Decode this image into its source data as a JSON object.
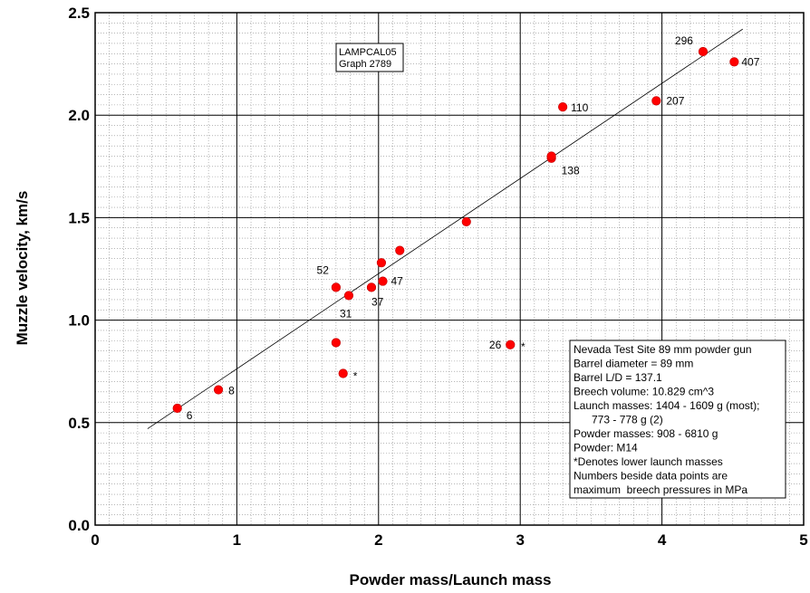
{
  "chart_data": {
    "type": "scatter",
    "title": "",
    "xlabel": "Powder mass/Launch mass",
    "ylabel": "Muzzle velocity, km/s",
    "xlim": [
      0,
      5
    ],
    "ylim": [
      0,
      2.5
    ],
    "x_ticks": [
      0,
      1,
      2,
      3,
      4,
      5
    ],
    "y_ticks": [
      0.0,
      0.5,
      1.0,
      1.5,
      2.0,
      2.5
    ],
    "x_tick_labels": [
      "0",
      "1",
      "2",
      "3",
      "4",
      "5"
    ],
    "y_tick_labels": [
      "0.0",
      "0.5",
      "1.0",
      "1.5",
      "2.0",
      "2.5"
    ],
    "grid": true,
    "marker_color": "#ff0000",
    "points": [
      {
        "x": 0.58,
        "y": 0.57,
        "label": "6"
      },
      {
        "x": 0.87,
        "y": 0.66,
        "label": "8"
      },
      {
        "x": 1.7,
        "y": 1.16,
        "label": "52"
      },
      {
        "x": 1.79,
        "y": 1.12,
        "label": "31"
      },
      {
        "x": 1.7,
        "y": 0.89,
        "label": ""
      },
      {
        "x": 1.75,
        "y": 0.74,
        "label": "*"
      },
      {
        "x": 1.95,
        "y": 1.16,
        "label": "37"
      },
      {
        "x": 2.03,
        "y": 1.19,
        "label": "47"
      },
      {
        "x": 2.02,
        "y": 1.28,
        "label": ""
      },
      {
        "x": 2.15,
        "y": 1.34,
        "label": ""
      },
      {
        "x": 2.62,
        "y": 1.48,
        "label": ""
      },
      {
        "x": 2.93,
        "y": 0.88,
        "label": "26"
      },
      {
        "x": 3.22,
        "y": 1.79,
        "label": "138"
      },
      {
        "x": 3.22,
        "y": 1.8,
        "label": ""
      },
      {
        "x": 3.3,
        "y": 2.04,
        "label": "110"
      },
      {
        "x": 3.96,
        "y": 2.07,
        "label": "207"
      },
      {
        "x": 4.29,
        "y": 2.31,
        "label": "296"
      },
      {
        "x": 4.51,
        "y": 2.26,
        "label": "407"
      }
    ],
    "extra_marks": [
      {
        "x": 3.02,
        "y": 0.88,
        "label": "*"
      }
    ],
    "fit_line": {
      "x": [
        0.37,
        4.57
      ],
      "y": [
        0.47,
        2.42
      ]
    },
    "annotation_box": {
      "lines": [
        "LAMPCAL05",
        "Graph 2789"
      ]
    },
    "info_box": {
      "lines": [
        "Nevada Test Site 89 mm powder gun",
        "Barrel diameter = 89 mm",
        "Barrel L/D = 137.1",
        "Breech volume: 10.829 cm^3",
        "Launch masses: 1404 - 1609 g (most);",
        "  773 - 778 g (2)",
        "Powder masses: 908 - 6810 g",
        "Powder: M14",
        "*Denotes lower launch masses",
        "Numbers beside data points are",
        "maximum  breech pressures in MPa"
      ]
    }
  }
}
